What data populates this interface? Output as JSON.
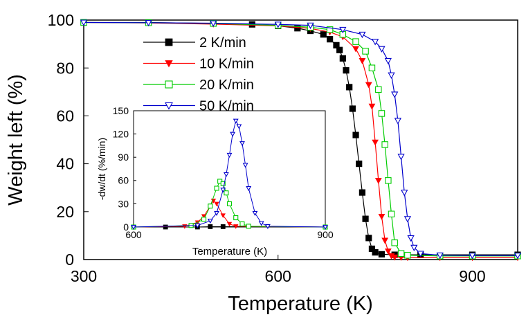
{
  "chart_data": [
    {
      "type": "line",
      "title": "",
      "xlabel": "Temperature (K)",
      "ylabel": "Weight left (%)",
      "xlim": [
        300,
        970
      ],
      "ylim": [
        0,
        100
      ],
      "xticks": [
        "300",
        "600",
        "900"
      ],
      "yticks": [
        "0",
        "20",
        "40",
        "60",
        "80",
        "100"
      ],
      "legend_position": "upper-left",
      "series": [
        {
          "name": "2 K/min",
          "color": "#000000",
          "marker": "filled-square",
          "x": [
            300,
            400,
            500,
            560,
            600,
            630,
            650,
            670,
            680,
            690,
            695,
            700,
            705,
            710,
            715,
            720,
            725,
            730,
            735,
            740,
            745,
            750,
            760,
            780,
            820,
            900,
            970
          ],
          "y": [
            99,
            99,
            98.6,
            98.2,
            97.6,
            96.6,
            95.5,
            94,
            92,
            89.5,
            87.5,
            84,
            79,
            72,
            63,
            52,
            40,
            28,
            17,
            9,
            4.5,
            3,
            2.2,
            2,
            2,
            2,
            2
          ]
        },
        {
          "name": "10 K/min",
          "color": "#ff0000",
          "marker": "filled-triangle-down",
          "x": [
            300,
            400,
            500,
            600,
            650,
            680,
            700,
            720,
            730,
            740,
            745,
            750,
            755,
            760,
            765,
            770,
            775,
            780,
            790,
            800,
            850,
            900,
            970
          ],
          "y": [
            99,
            98.8,
            98.3,
            97.6,
            96.5,
            95,
            93,
            88,
            83,
            73,
            64,
            49,
            33,
            18,
            8,
            3.5,
            1.5,
            1,
            0.9,
            0.8,
            0.8,
            0.8,
            0.8
          ]
        },
        {
          "name": "20 K/min",
          "color": "#00cc00",
          "marker": "open-square",
          "x": [
            300,
            400,
            500,
            600,
            650,
            680,
            700,
            720,
            735,
            745,
            755,
            760,
            765,
            770,
            775,
            780,
            790,
            800,
            850,
            900,
            970
          ],
          "y": [
            99,
            98.9,
            98.6,
            97.8,
            97,
            96,
            94,
            91,
            87,
            80,
            71,
            61,
            48,
            33,
            19,
            7,
            2.5,
            1.8,
            1.5,
            1.5,
            1.5
          ]
        },
        {
          "name": "50 K/min",
          "color": "#0000cc",
          "marker": "open-triangle-down",
          "x": [
            300,
            400,
            500,
            600,
            650,
            700,
            730,
            750,
            760,
            770,
            775,
            780,
            785,
            790,
            795,
            800,
            805,
            810,
            820,
            850,
            900,
            970
          ],
          "y": [
            99,
            98.9,
            98.7,
            98.2,
            97.8,
            96,
            94,
            91,
            88,
            83,
            77,
            69,
            58,
            43,
            28,
            17,
            9,
            5,
            2.5,
            1.8,
            1.7,
            1.7
          ]
        }
      ]
    },
    {
      "type": "line",
      "title": "",
      "xlabel": "Temperature (K)",
      "ylabel": "-dw/dt (%/min)",
      "xlim": [
        600,
        900
      ],
      "ylim": [
        0,
        150
      ],
      "xticks": [
        "600",
        "900"
      ],
      "yticks": [
        "0",
        "30",
        "60",
        "90",
        "120",
        "150"
      ],
      "series": [
        {
          "name": "2 K/min",
          "color": "#000000",
          "marker": "filled-square",
          "x": [
            600,
            650,
            700,
            720,
            740,
            900
          ],
          "y": [
            0,
            0,
            0,
            0.5,
            0.5,
            0
          ]
        },
        {
          "name": "10 K/min",
          "color": "#ff0000",
          "marker": "filled-triangle-down",
          "x": [
            600,
            680,
            700,
            710,
            720,
            725,
            730,
            740,
            750,
            760,
            900
          ],
          "y": [
            0,
            1,
            6,
            14,
            27,
            34,
            30,
            15,
            4,
            1,
            0
          ]
        },
        {
          "name": "20 K/min",
          "color": "#00cc00",
          "marker": "open-square",
          "x": [
            600,
            690,
            710,
            720,
            730,
            735,
            740,
            745,
            750,
            760,
            770,
            780,
            900
          ],
          "y": [
            0,
            2,
            10,
            27,
            50,
            59,
            56,
            44,
            30,
            12,
            4,
            1,
            0
          ]
        },
        {
          "name": "50 K/min",
          "color": "#0000cc",
          "marker": "open-triangle-down",
          "x": [
            600,
            700,
            720,
            730,
            740,
            745,
            750,
            755,
            760,
            765,
            770,
            775,
            780,
            790,
            800,
            810,
            900
          ],
          "y": [
            0,
            2,
            8,
            18,
            48,
            68,
            93,
            120,
            137,
            130,
            108,
            80,
            50,
            18,
            5,
            1,
            0
          ]
        }
      ]
    }
  ]
}
